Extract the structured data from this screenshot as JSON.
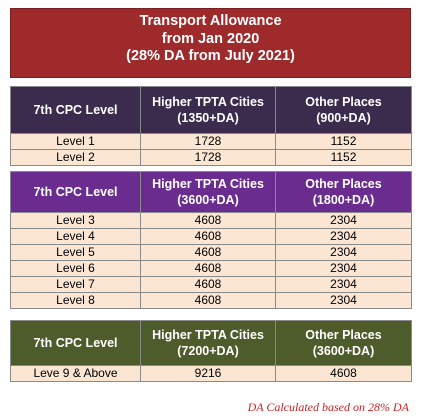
{
  "title": {
    "line1": "Transport Allowance",
    "line2": "from Jan 2020",
    "line3": "(28% DA from July 2021)"
  },
  "tables": [
    {
      "header": {
        "col1": "7th CPC Level",
        "col2_line1": "Higher TPTA Cities",
        "col2_line2": "(1350+DA)",
        "col3_line1": "Other Places",
        "col3_line2": "(900+DA)"
      },
      "rows": [
        {
          "level": "Level 1",
          "higher": "1728",
          "other": "1152"
        },
        {
          "level": "Level 2",
          "higher": "1728",
          "other": "1152"
        }
      ]
    },
    {
      "header": {
        "col1": "7th CPC Level",
        "col2_line1": "Higher TPTA Cities",
        "col2_line2": "(3600+DA)",
        "col3_line1": "Other Places",
        "col3_line2": "(1800+DA)"
      },
      "rows": [
        {
          "level": "Level 3",
          "higher": "4608",
          "other": "2304"
        },
        {
          "level": "Level 4",
          "higher": "4608",
          "other": "2304"
        },
        {
          "level": "Level 5",
          "higher": "4608",
          "other": "2304"
        },
        {
          "level": "Level 6",
          "higher": "4608",
          "other": "2304"
        },
        {
          "level": "Level 7",
          "higher": "4608",
          "other": "2304"
        },
        {
          "level": "Level 8",
          "higher": "4608",
          "other": "2304"
        }
      ]
    },
    {
      "header": {
        "col1": "7th CPC Level",
        "col2_line1": "Higher TPTA Cities",
        "col2_line2": "(7200+DA)",
        "col3_line1": "Other Places",
        "col3_line2": "(3600+DA)"
      },
      "rows": [
        {
          "level": "Leve 9 & Above",
          "higher": "9216",
          "other": "4608"
        }
      ]
    }
  ],
  "footnote": "DA Calculated based on 28% DA",
  "colors": {
    "title_bg": "#9e2a2b",
    "table1_header_bg": "#3b2b4d",
    "table2_header_bg": "#6a2d8f",
    "table3_header_bg": "#4e5b2a",
    "row_bg": "#fbe6d4",
    "footnote": "#cc2222"
  }
}
